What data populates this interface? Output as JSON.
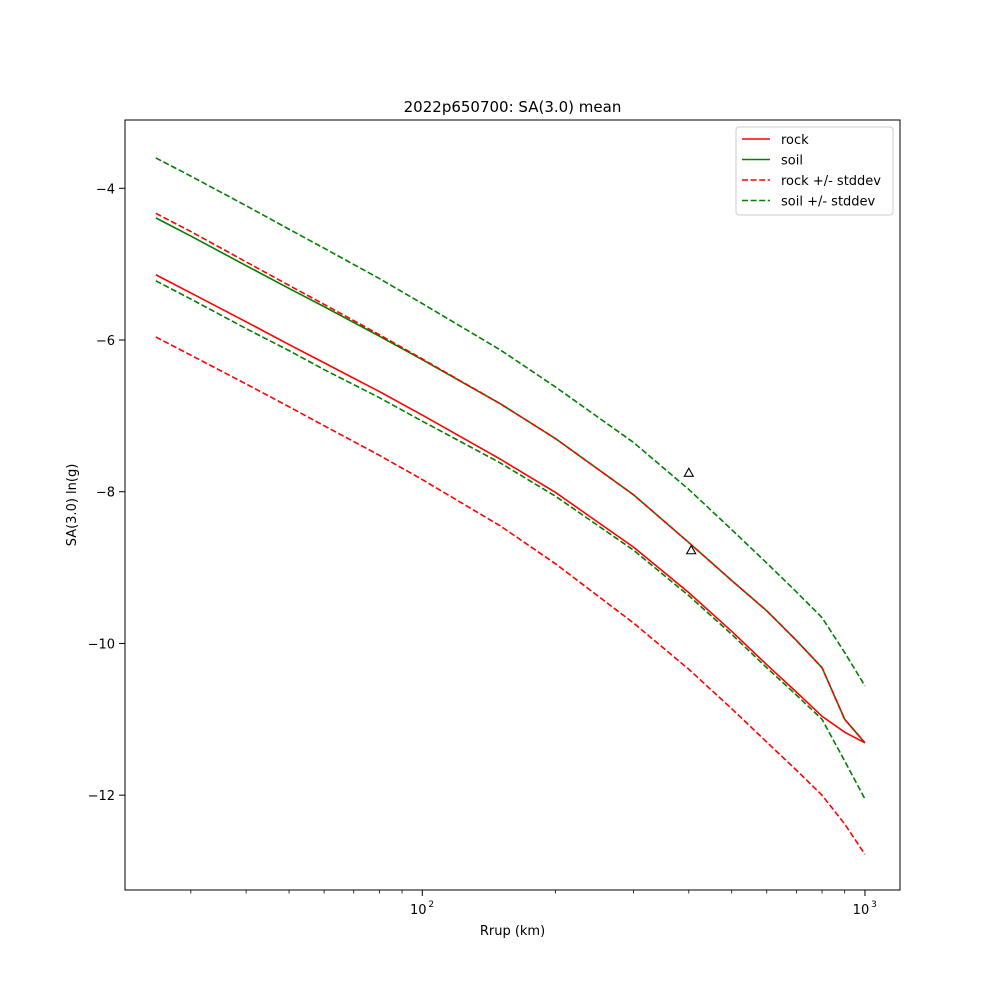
{
  "chart_data": {
    "type": "line",
    "title": "2022p650700: SA(3.0) mean",
    "xlabel": "Rrup (km)",
    "ylabel": "SA(3.0) ln(g)",
    "x_scale": "log",
    "xlim": [
      21.3,
      1200
    ],
    "ylim": [
      -13.25,
      -3.1
    ],
    "x_tick_labels": [
      {
        "value": 100,
        "base": "10",
        "exp": "2"
      },
      {
        "value": 1000,
        "base": "10",
        "exp": "3"
      }
    ],
    "y_ticks": [
      -4,
      -6,
      -8,
      -10,
      -12
    ],
    "y_tick_labels": [
      "−4",
      "−6",
      "−8",
      "−10",
      "−12"
    ],
    "grid": false,
    "legend_position": "top-right",
    "x": [
      25,
      30,
      40,
      50,
      60,
      80,
      100,
      150,
      200,
      300,
      400,
      500,
      600,
      700,
      800,
      900,
      1000
    ],
    "series": [
      {
        "name": "rock",
        "color": "#ff0000",
        "style": "solid",
        "values": [
          -5.14,
          -5.38,
          -5.76,
          -6.06,
          -6.3,
          -6.68,
          -6.99,
          -7.57,
          -8.01,
          -8.73,
          -9.33,
          -9.84,
          -10.28,
          -10.64,
          -10.96,
          -11.17,
          -11.31
        ]
      },
      {
        "name": "soil",
        "color": "#008000",
        "style": "solid",
        "values": [
          -4.39,
          -4.63,
          -5.02,
          -5.32,
          -5.56,
          -5.95,
          -6.26,
          -6.84,
          -7.3,
          -8.04,
          -8.67,
          -9.17,
          -9.57,
          -9.96,
          -10.32,
          -11.0,
          -11.31
        ]
      },
      {
        "name": "rock +/- stddev",
        "color": "#ff0000",
        "style": "dashed",
        "values": [
          -4.33,
          -4.57,
          -4.97,
          -5.28,
          -5.53,
          -5.93,
          -6.25,
          -6.84,
          -7.3,
          -8.04,
          -8.67,
          -9.17,
          -9.57,
          -9.96,
          -10.32,
          -11.0,
          -11.31
        ]
      },
      {
        "name": "rock +/- stddev (lower)",
        "color": "#ff0000",
        "style": "dashed",
        "in_legend": false,
        "values": [
          -5.96,
          -6.2,
          -6.58,
          -6.88,
          -7.13,
          -7.52,
          -7.84,
          -8.45,
          -8.95,
          -9.73,
          -10.34,
          -10.86,
          -11.3,
          -11.67,
          -12.0,
          -12.38,
          -12.78
        ]
      },
      {
        "name": "soil +/- stddev",
        "color": "#008000",
        "style": "dashed",
        "values": [
          -3.6,
          -3.84,
          -4.23,
          -4.54,
          -4.79,
          -5.19,
          -5.52,
          -6.13,
          -6.62,
          -7.35,
          -7.97,
          -8.5,
          -8.94,
          -9.32,
          -9.66,
          -10.12,
          -10.56
        ]
      },
      {
        "name": "soil +/- stddev (lower)",
        "color": "#008000",
        "style": "dashed",
        "in_legend": false,
        "values": [
          -5.22,
          -5.46,
          -5.85,
          -6.14,
          -6.39,
          -6.76,
          -7.07,
          -7.62,
          -8.06,
          -8.77,
          -9.37,
          -9.88,
          -10.32,
          -10.68,
          -11.0,
          -11.55,
          -12.05
        ]
      }
    ],
    "observations": [
      {
        "x": 400,
        "y": -7.75,
        "marker": "triangle"
      },
      {
        "x": 405,
        "y": -8.77,
        "marker": "triangle"
      }
    ]
  }
}
